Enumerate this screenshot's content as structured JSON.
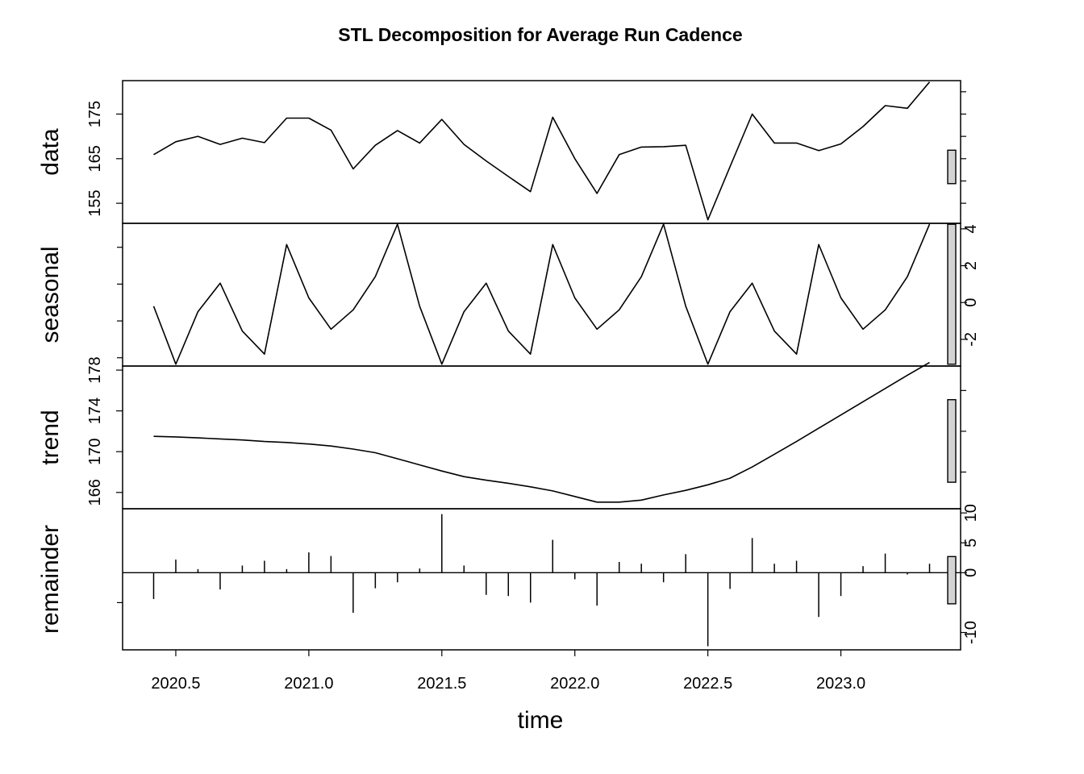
{
  "chart_data": {
    "type": "line",
    "title": "STL Decomposition for Average Run Cadence",
    "xlabel": "time",
    "x": [
      2020.4167,
      2020.5,
      2020.5833,
      2020.6667,
      2020.75,
      2020.8333,
      2020.9167,
      2021.0,
      2021.0833,
      2021.1667,
      2021.25,
      2021.3333,
      2021.4167,
      2021.5,
      2021.5833,
      2021.6667,
      2021.75,
      2021.8333,
      2021.9167,
      2022.0,
      2022.0833,
      2022.1667,
      2022.25,
      2022.3333,
      2022.4167,
      2022.5,
      2022.5833,
      2022.6667,
      2022.75,
      2022.8333,
      2022.9167,
      2023.0,
      2023.0833,
      2023.1667,
      2023.25,
      2023.3333
    ],
    "x_ticks": [
      2020.5,
      2021.0,
      2021.5,
      2022.0,
      2022.5,
      2023.0
    ],
    "x_tick_labels": [
      "2020.5",
      "2021.0",
      "2021.5",
      "2022.0",
      "2022.5",
      "2023.0"
    ],
    "xlim": [
      2020.3,
      2023.45
    ],
    "panels": [
      {
        "name": "data",
        "label": "data",
        "plot": "line",
        "ylim": [
          150.5,
          182.5
        ],
        "ticks": [
          155,
          165,
          175
        ],
        "tick_labels": [
          "155",
          "165",
          "175"
        ],
        "tick_side": "left",
        "minor_ticks": [
          155,
          160,
          165,
          170,
          175,
          180
        ],
        "values": [
          165.9,
          168.8,
          170.0,
          168.2,
          169.6,
          168.6,
          174.1,
          174.1,
          171.4,
          162.7,
          168.0,
          171.3,
          168.5,
          173.8,
          168.2,
          164.5,
          161.0,
          157.6,
          174.3,
          165.0,
          157.2,
          165.9,
          167.6,
          167.7,
          168.0,
          151.3,
          163.2,
          175.0,
          168.5,
          168.5,
          166.8,
          168.3,
          172.2,
          176.9,
          176.3,
          182.2
        ],
        "range_bar": [
          159.4,
          166.9
        ]
      },
      {
        "name": "seasonal",
        "label": "seasonal",
        "plot": "line",
        "ylim": [
          -3.45,
          4.3
        ],
        "ticks": [
          -2,
          0,
          2,
          4
        ],
        "tick_labels": [
          "-2",
          "0",
          "2",
          "4"
        ],
        "tick_side": "right",
        "minor_ticks": [
          -3,
          -1,
          1,
          3
        ],
        "values": [
          -0.2,
          -3.35,
          -0.5,
          1.05,
          -1.55,
          -2.8,
          3.15,
          0.25,
          -1.45,
          -0.4,
          1.4,
          4.25,
          -0.2,
          -3.35,
          -0.5,
          1.05,
          -1.55,
          -2.8,
          3.15,
          0.25,
          -1.45,
          -0.4,
          1.4,
          4.25,
          -0.2,
          -3.35,
          -0.5,
          1.05,
          -1.55,
          -2.8,
          3.15,
          0.25,
          -1.45,
          -0.4,
          1.4,
          4.25
        ],
        "range_bar": [
          -3.35,
          4.25
        ]
      },
      {
        "name": "trend",
        "label": "trend",
        "plot": "line",
        "ylim": [
          164.4,
          178.4
        ],
        "ticks": [
          166,
          170,
          174,
          178
        ],
        "tick_labels": [
          "166",
          "170",
          "174",
          "178"
        ],
        "tick_side": "left",
        "minor_ticks": [
          168,
          172,
          176
        ],
        "values": [
          171.5,
          171.45,
          171.35,
          171.25,
          171.15,
          171.0,
          170.9,
          170.75,
          170.55,
          170.25,
          169.9,
          169.3,
          168.7,
          168.1,
          167.55,
          167.2,
          166.9,
          166.55,
          166.15,
          165.6,
          165.05,
          165.05,
          165.25,
          165.75,
          166.2,
          166.75,
          167.4,
          168.5,
          169.75,
          171.0,
          172.3,
          173.6,
          174.9,
          176.2,
          177.5,
          178.75
        ],
        "range_bar": [
          167.0,
          175.1
        ]
      },
      {
        "name": "remainder",
        "label": "remainder",
        "plot": "bars",
        "ylim": [
          -12.9,
          10.7
        ],
        "ticks": [
          -10,
          0,
          5,
          10
        ],
        "tick_labels": [
          "-10",
          "0",
          "5",
          "10"
        ],
        "tick_side": "right",
        "minor_ticks": [
          -5
        ],
        "values": [
          -4.4,
          2.2,
          0.6,
          -2.8,
          1.2,
          2.0,
          0.6,
          3.4,
          2.8,
          -6.7,
          -2.6,
          -1.6,
          0.7,
          9.8,
          1.2,
          -3.7,
          -3.9,
          -5.0,
          5.5,
          -1.1,
          -5.5,
          1.8,
          1.5,
          -1.6,
          3.1,
          -12.3,
          -2.7,
          5.8,
          1.5,
          2.0,
          -7.4,
          -3.9,
          1.1,
          3.2,
          -0.3,
          1.5
        ],
        "range_bar": [
          -5.2,
          2.7
        ]
      }
    ]
  }
}
